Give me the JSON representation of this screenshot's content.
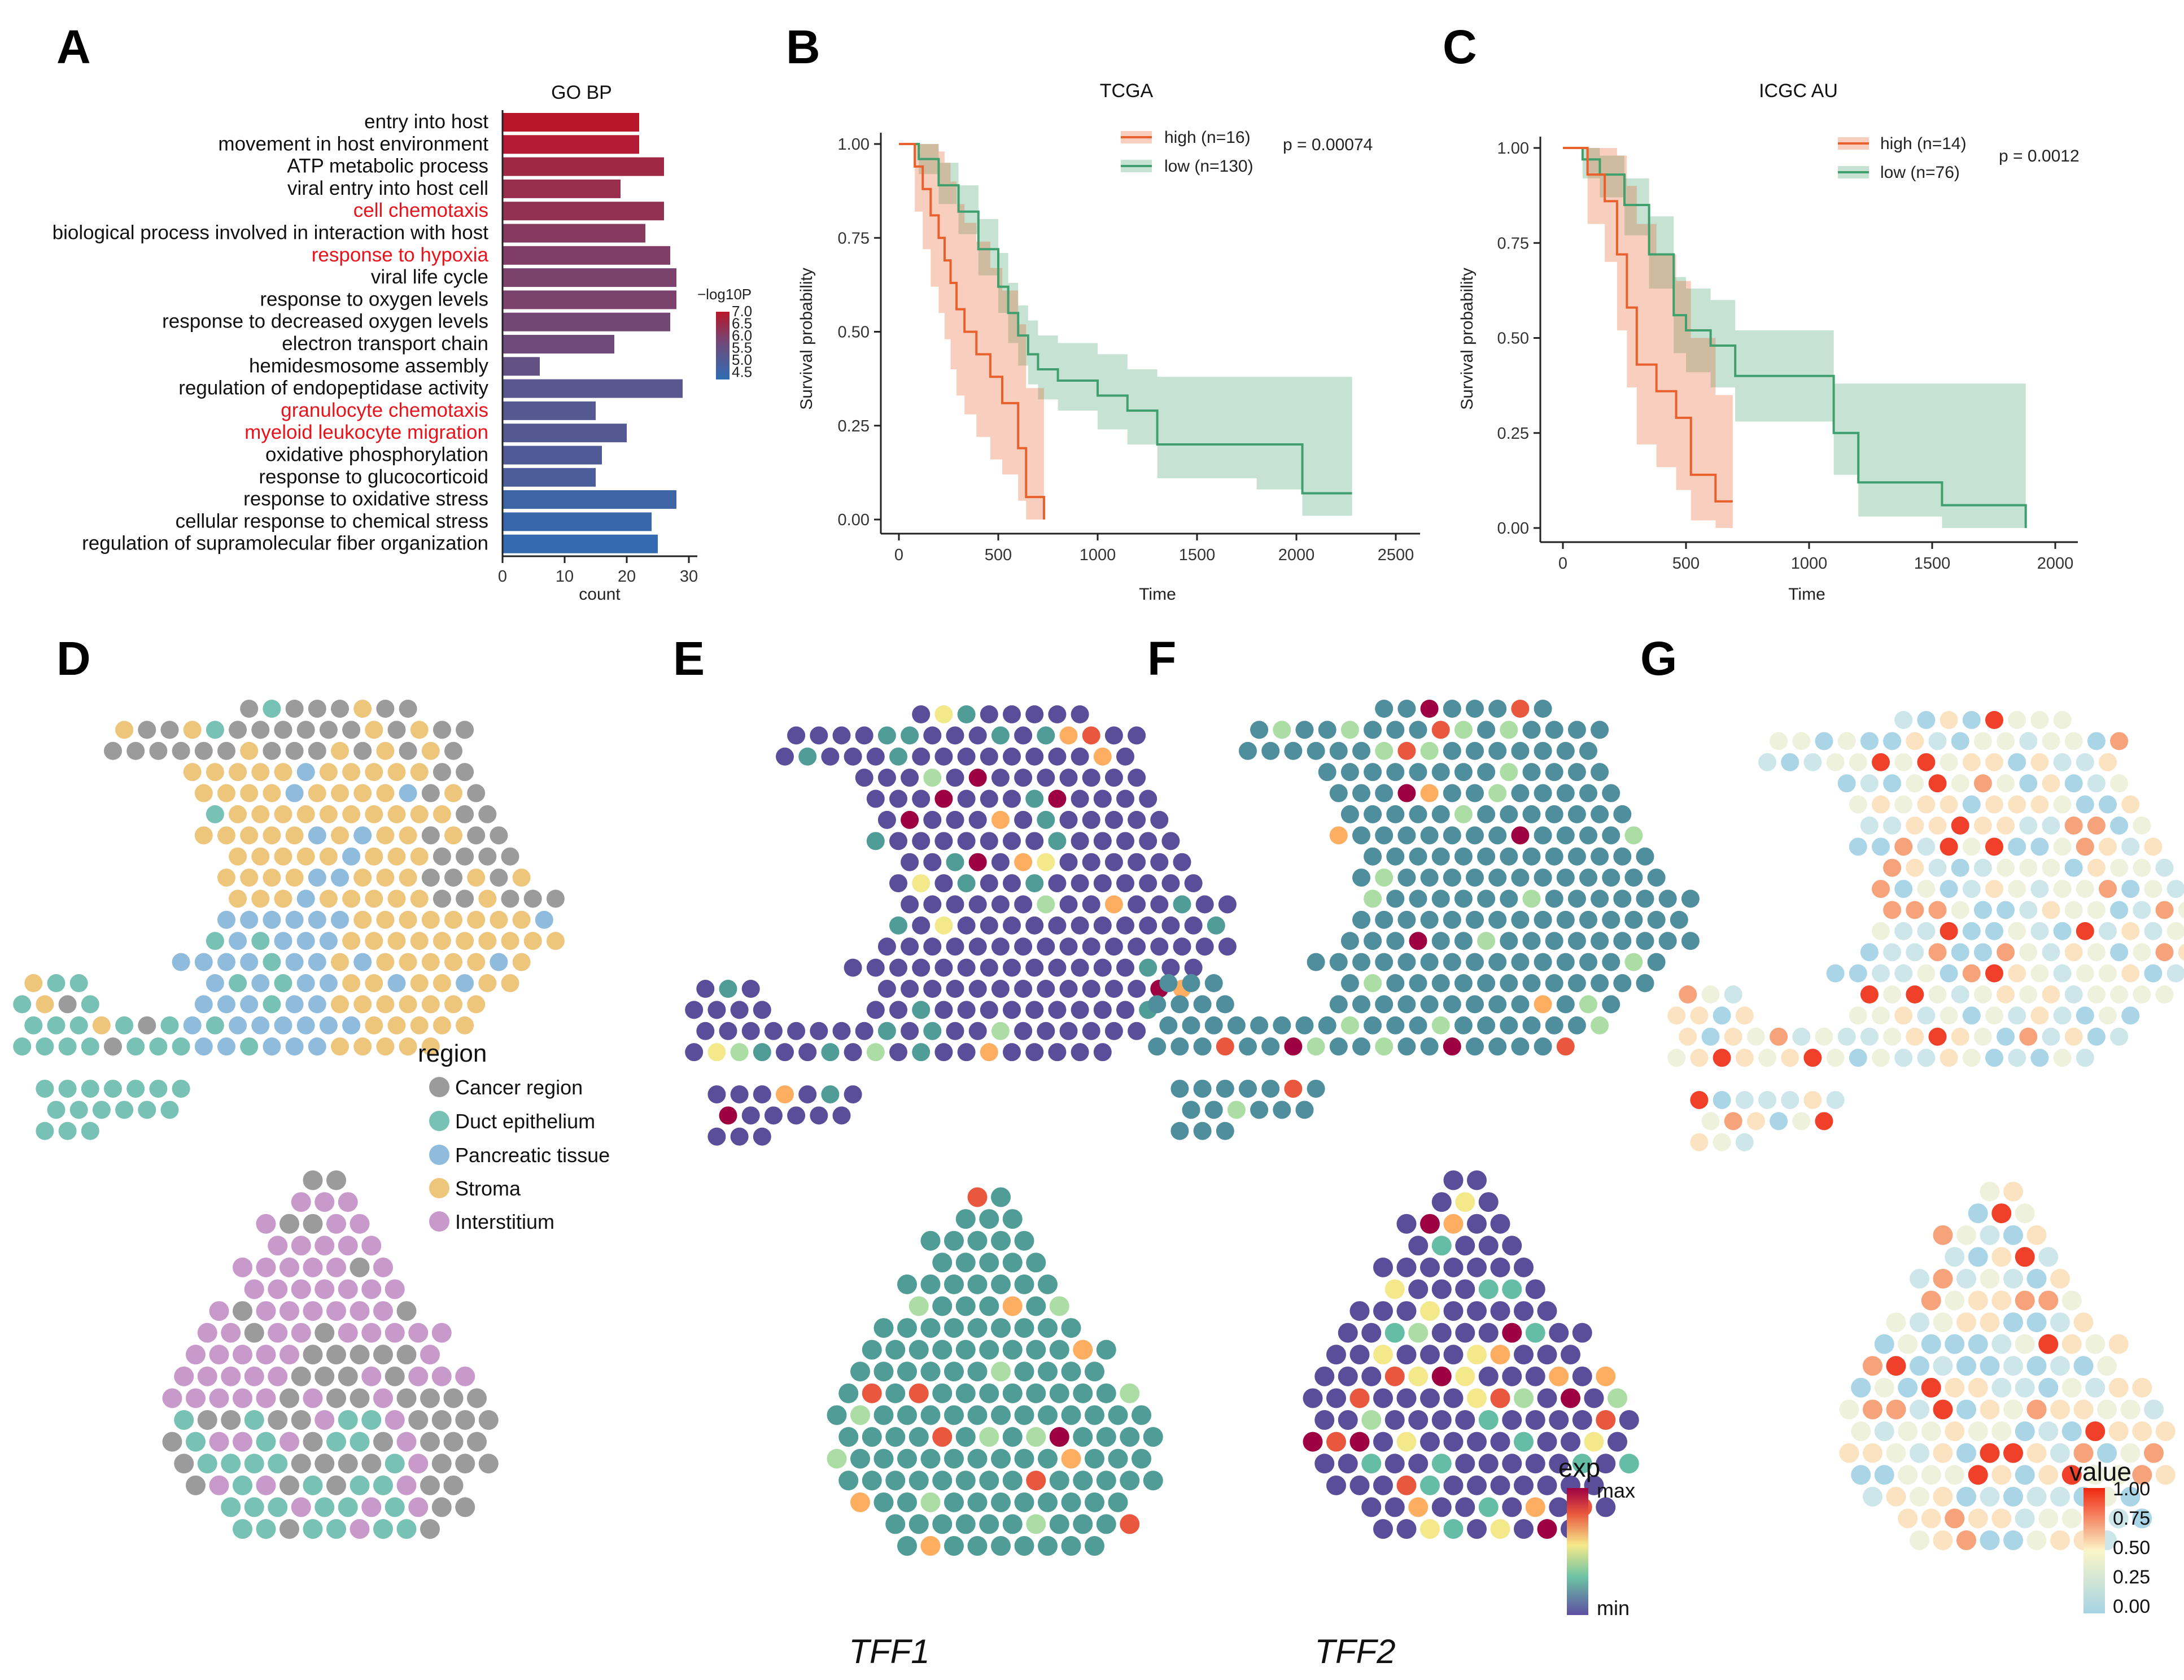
{
  "panels": {
    "A": "A",
    "B": "B",
    "C": "C",
    "D": "D",
    "E": "E",
    "F": "F",
    "G": "G"
  },
  "colors": {
    "km_high": "#e8602c",
    "km_low": "#3fa06e",
    "cancer_region": "#9b9b9b",
    "duct_epithelium": "#77c1b5",
    "pancreatic_tissue": "#8fbcdc",
    "stroma": "#edc67c",
    "interstitium": "#c89acb"
  },
  "chart_data": [
    {
      "id": "A",
      "type": "bar",
      "orientation": "horizontal",
      "title": "GO BP",
      "xlabel": "count",
      "xlim": [
        0,
        30
      ],
      "xticks": [
        "0",
        "10",
        "20",
        "30"
      ],
      "color_legend_title": "−log10P",
      "color_legend_ticks": [
        "7.0",
        "6.5",
        "6.0",
        "5.5",
        "5.0",
        "4.5"
      ],
      "categories": [
        "entry into host",
        "movement in host environment",
        "ATP metabolic process",
        "viral entry into host cell",
        "cell chemotaxis",
        "biological process involved in interaction with host",
        "response to hypoxia",
        "viral life cycle",
        "response to oxygen levels",
        "response to decreased oxygen levels",
        "electron transport chain",
        "hemidesmosome assembly",
        "regulation of endopeptidase activity",
        "granulocyte chemotaxis",
        "myeloid leukocyte migration",
        "oxidative phosphorylation",
        "response to glucocorticoid",
        "response to oxidative stress",
        "cellular response to chemical stress",
        "regulation of supramolecular fiber organization"
      ],
      "highlighted": [
        4,
        6,
        13,
        14
      ],
      "values": [
        22,
        22,
        26,
        19,
        26,
        23,
        27,
        28,
        28,
        27,
        18,
        6,
        29,
        15,
        20,
        16,
        15,
        28,
        24,
        25
      ],
      "neglog10p": [
        7.0,
        6.9,
        6.6,
        6.5,
        6.4,
        6.2,
        6.1,
        6.0,
        6.0,
        5.9,
        5.8,
        5.6,
        5.4,
        5.3,
        5.3,
        5.2,
        5.1,
        4.8,
        4.7,
        4.6
      ]
    },
    {
      "id": "B",
      "type": "line",
      "title": "TCGA",
      "xlabel": "Time",
      "ylabel": "Survival probability",
      "xlim": [
        0,
        2500
      ],
      "ylim": [
        0,
        1
      ],
      "xticks": [
        "0",
        "500",
        "1000",
        "1500",
        "2000",
        "2500"
      ],
      "yticks": [
        "0.00",
        "0.25",
        "0.50",
        "0.75",
        "1.00"
      ],
      "pvalue": "p = 0.00074",
      "series": [
        {
          "name": "high (n=16)",
          "x": [
            0,
            80,
            120,
            160,
            200,
            230,
            260,
            290,
            330,
            390,
            460,
            520,
            600,
            640,
            730
          ],
          "y": [
            1.0,
            0.94,
            0.88,
            0.81,
            0.75,
            0.69,
            0.63,
            0.56,
            0.5,
            0.44,
            0.38,
            0.31,
            0.19,
            0.06,
            0.0
          ],
          "ci_lower": [
            1.0,
            0.82,
            0.72,
            0.62,
            0.55,
            0.48,
            0.4,
            0.33,
            0.28,
            0.22,
            0.16,
            0.12,
            0.05,
            0.0,
            0.0
          ],
          "ci_upper": [
            1.0,
            1.0,
            1.0,
            1.0,
            0.98,
            0.95,
            0.9,
            0.84,
            0.79,
            0.74,
            0.67,
            0.61,
            0.52,
            0.35,
            0.0
          ]
        },
        {
          "name": "low (n=130)",
          "x": [
            0,
            100,
            200,
            300,
            400,
            500,
            550,
            600,
            650,
            700,
            800,
            1000,
            1150,
            1300,
            1800,
            2030,
            2280
          ],
          "y": [
            1.0,
            0.96,
            0.89,
            0.82,
            0.72,
            0.62,
            0.55,
            0.49,
            0.44,
            0.4,
            0.37,
            0.33,
            0.29,
            0.2,
            0.2,
            0.07,
            0.07
          ],
          "ci_lower": [
            1.0,
            0.92,
            0.84,
            0.76,
            0.65,
            0.55,
            0.47,
            0.41,
            0.36,
            0.32,
            0.29,
            0.24,
            0.2,
            0.11,
            0.08,
            0.01,
            0.01
          ],
          "ci_upper": [
            1.0,
            1.0,
            0.95,
            0.89,
            0.8,
            0.71,
            0.63,
            0.57,
            0.53,
            0.49,
            0.47,
            0.44,
            0.4,
            0.38,
            0.38,
            0.38,
            0.38
          ]
        }
      ]
    },
    {
      "id": "C",
      "type": "line",
      "title": "ICGC AU",
      "xlabel": "Time",
      "ylabel": "Survival probability",
      "xlim": [
        0,
        2000
      ],
      "ylim": [
        0,
        1
      ],
      "xticks": [
        "0",
        "500",
        "1000",
        "1500",
        "2000"
      ],
      "yticks": [
        "0.00",
        "0.25",
        "0.50",
        "0.75",
        "1.00"
      ],
      "pvalue": "p = 0.0012",
      "series": [
        {
          "name": "high (n=14)",
          "x": [
            0,
            100,
            170,
            220,
            260,
            300,
            380,
            460,
            520,
            620,
            690
          ],
          "y": [
            1.0,
            0.93,
            0.86,
            0.72,
            0.58,
            0.43,
            0.36,
            0.29,
            0.14,
            0.07,
            0.07
          ],
          "ci_lower": [
            1.0,
            0.8,
            0.7,
            0.52,
            0.37,
            0.22,
            0.16,
            0.1,
            0.02,
            0.0,
            0.0
          ],
          "ci_upper": [
            1.0,
            1.0,
            1.0,
            0.98,
            0.9,
            0.8,
            0.72,
            0.65,
            0.5,
            0.35,
            0.35
          ]
        },
        {
          "name": "low (n=76)",
          "x": [
            0,
            80,
            150,
            250,
            350,
            450,
            500,
            600,
            700,
            1100,
            1200,
            1540,
            1880
          ],
          "y": [
            1.0,
            0.97,
            0.93,
            0.85,
            0.72,
            0.56,
            0.52,
            0.48,
            0.4,
            0.25,
            0.12,
            0.06,
            0.0
          ],
          "ci_lower": [
            1.0,
            0.92,
            0.87,
            0.77,
            0.63,
            0.46,
            0.41,
            0.37,
            0.28,
            0.14,
            0.03,
            0.0,
            0.0
          ],
          "ci_upper": [
            1.0,
            1.0,
            0.98,
            0.92,
            0.82,
            0.66,
            0.63,
            0.6,
            0.52,
            0.38,
            0.38,
            0.38,
            0.38
          ]
        }
      ]
    }
  ],
  "panelD": {
    "legend_title": "region",
    "legend_items": [
      "Cancer region",
      "Duct epithelium",
      "Pancreatic tissue",
      "Stroma",
      "Interstitium"
    ]
  },
  "panelE": {
    "gene": "TFF1"
  },
  "panelF": {
    "gene": "TFF2"
  },
  "exp_legend": {
    "title": "exp",
    "max": "max",
    "min": "min"
  },
  "value_legend": {
    "title": "value",
    "ticks": [
      "1.00",
      "0.75",
      "0.50",
      "0.25",
      "0.00"
    ]
  }
}
